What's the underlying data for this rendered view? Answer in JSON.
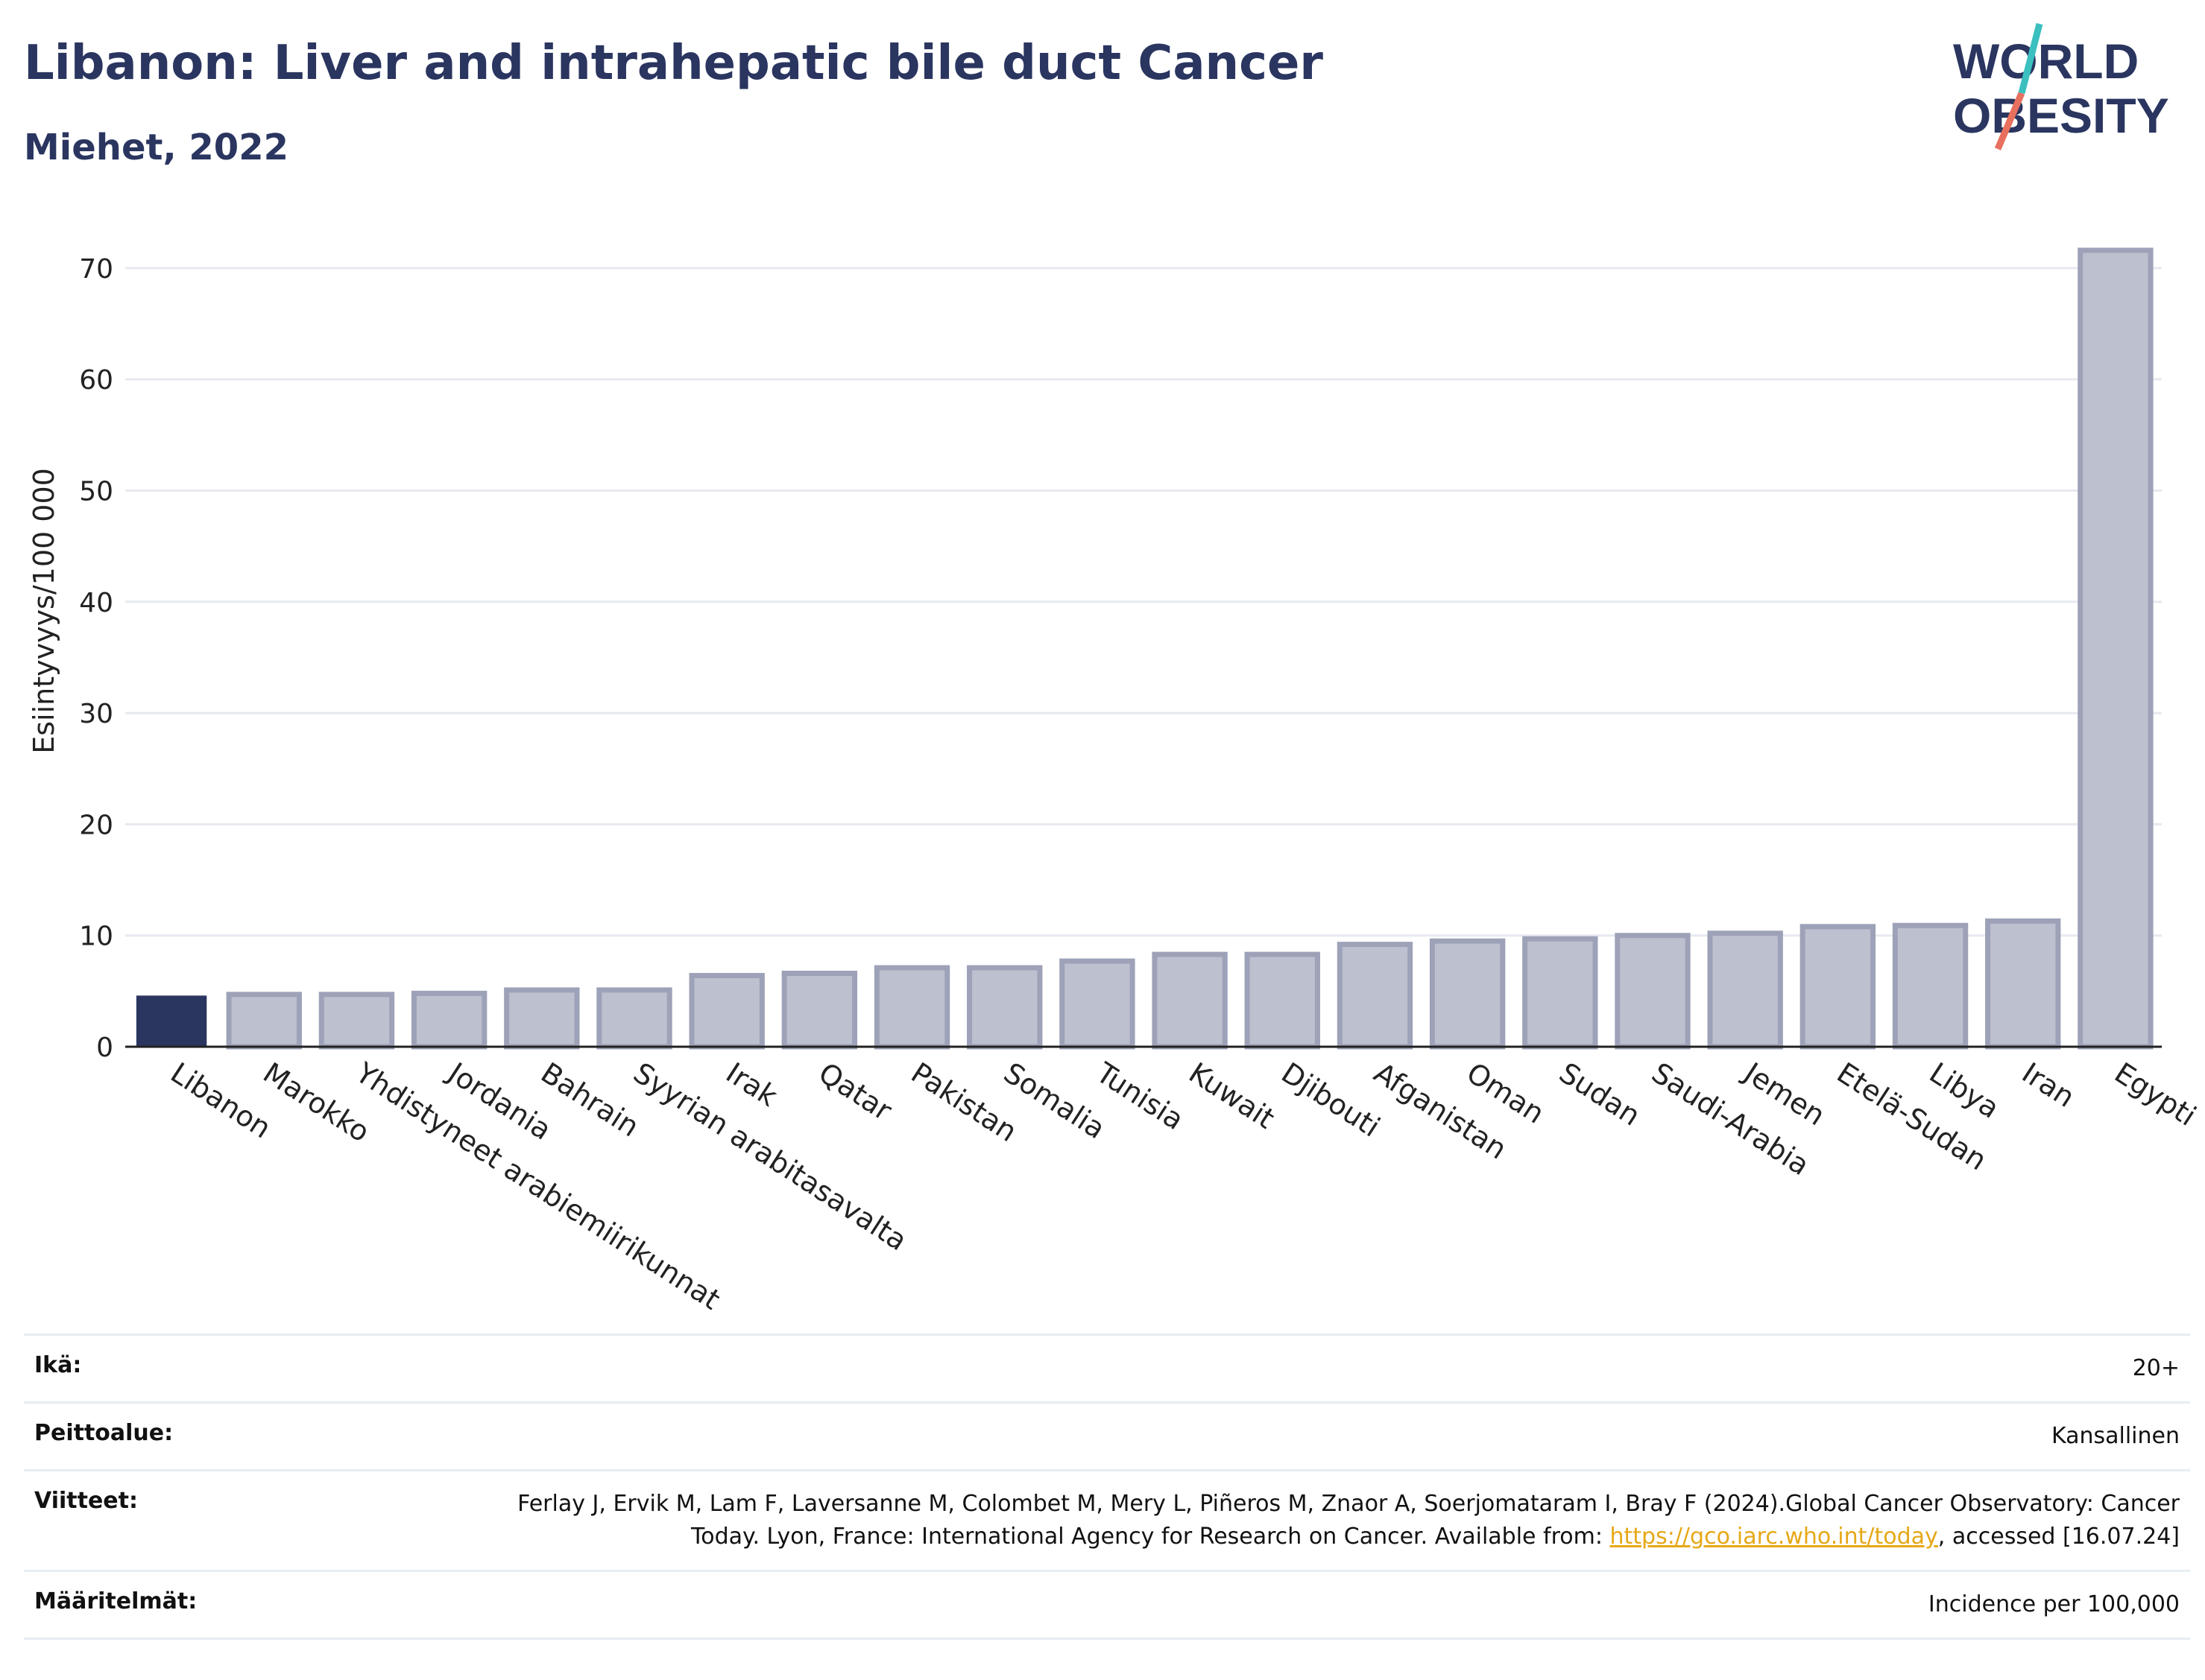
{
  "header": {
    "title": "Libanon: Liver and intrahepatic bile duct Cancer",
    "subtitle": "Miehet, 2022"
  },
  "logo": {
    "line1": "WORLD",
    "line2": "OBESITY",
    "accent_colors": [
      "#3bbfbf",
      "#e8705f"
    ]
  },
  "chart_data": {
    "type": "bar",
    "categories": [
      "Libanon",
      "Marokko",
      "Yhdistyneet arabiemiirikunnat",
      "Jordania",
      "Bahrain",
      "Syyrian arabitasavalta",
      "Irak",
      "Qatar",
      "Pakistan",
      "Somalia",
      "Tunisia",
      "Kuwait",
      "Djibouti",
      "Afganistan",
      "Oman",
      "Sudan",
      "Saudi-Arabia",
      "Jemen",
      "Etelä-Sudan",
      "Libya",
      "Iran",
      "Egypti"
    ],
    "values": [
      4.6,
      4.7,
      4.7,
      4.8,
      5.1,
      5.1,
      6.4,
      6.6,
      7.1,
      7.1,
      7.7,
      8.3,
      8.3,
      9.2,
      9.5,
      9.7,
      10.0,
      10.2,
      10.8,
      10.9,
      11.3,
      71.6
    ],
    "highlight": "Libanon",
    "ylabel": "Esiintyvyys/100 000",
    "ylim": [
      0,
      72
    ],
    "yticks": [
      0,
      10,
      20,
      30,
      40,
      50,
      60,
      70
    ],
    "grid": true,
    "colors": {
      "highlight": "#2a3560",
      "other": "#bcc0cf",
      "other_border": "#9da2b8",
      "grid": "#e6e9ef"
    }
  },
  "info": {
    "age_label": "Ikä:",
    "age_value": "20+",
    "coverage_label": "Peittoalue:",
    "coverage_value": "Kansallinen",
    "refs_label": "Viitteet:",
    "refs_text_1": "Ferlay J, Ervik M, Lam F, Laversanne M, Colombet M, Mery L, Piñeros M, Znaor A, Soerjomataram I, Bray F (2024).Global Cancer Observatory: Cancer Today. Lyon, France: International Agency for Research on Cancer. Available from: ",
    "refs_link": "https://gco.iarc.who.int/today",
    "refs_text_2": ", accessed [16.07.24]",
    "definitions_label": "Määritelmät:",
    "definitions_value": "Incidence per 100,000"
  }
}
